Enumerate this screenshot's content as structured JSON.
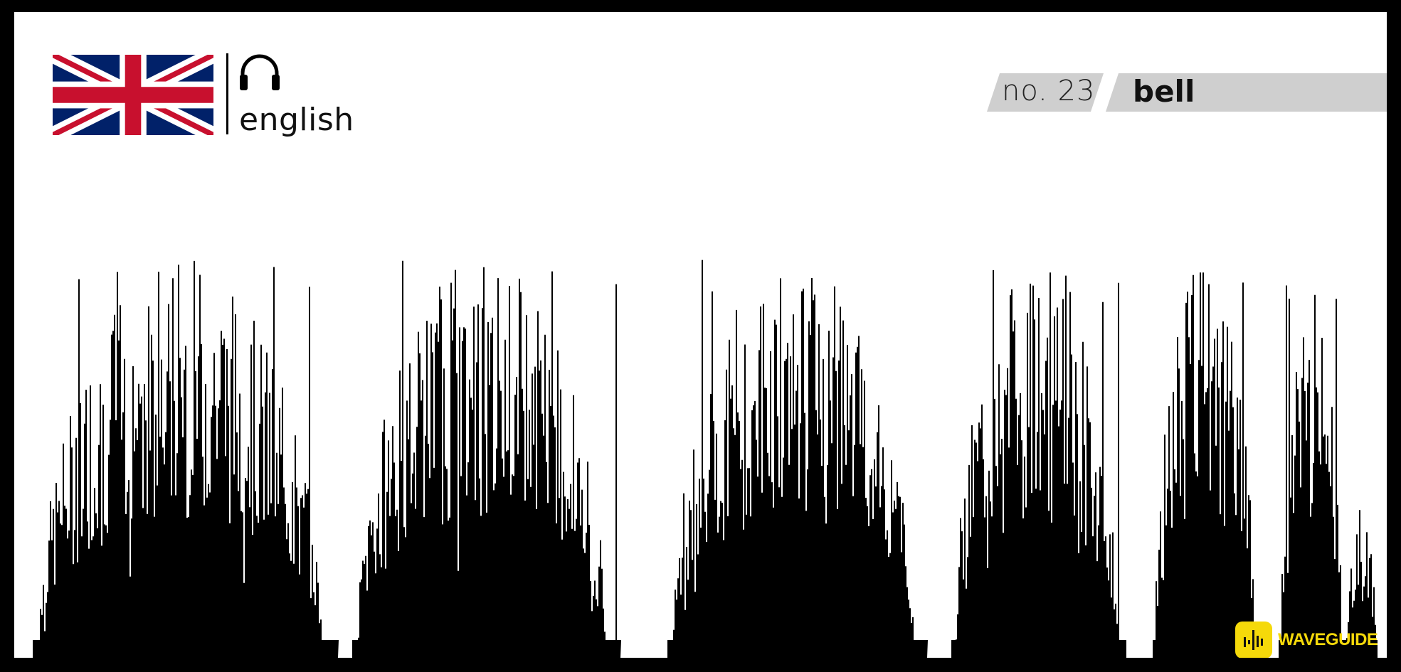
{
  "header": {
    "flag_icon": "uk-flag-icon",
    "audio_icon": "headphones-icon",
    "language": "english"
  },
  "title_bar": {
    "number": "no. 23",
    "word": "bell"
  },
  "waveform": {
    "color": "#000000"
  },
  "brand": {
    "logo_icon": "waveform-icon",
    "name": "WAVEGUIDE",
    "color": "#f5d90a"
  }
}
